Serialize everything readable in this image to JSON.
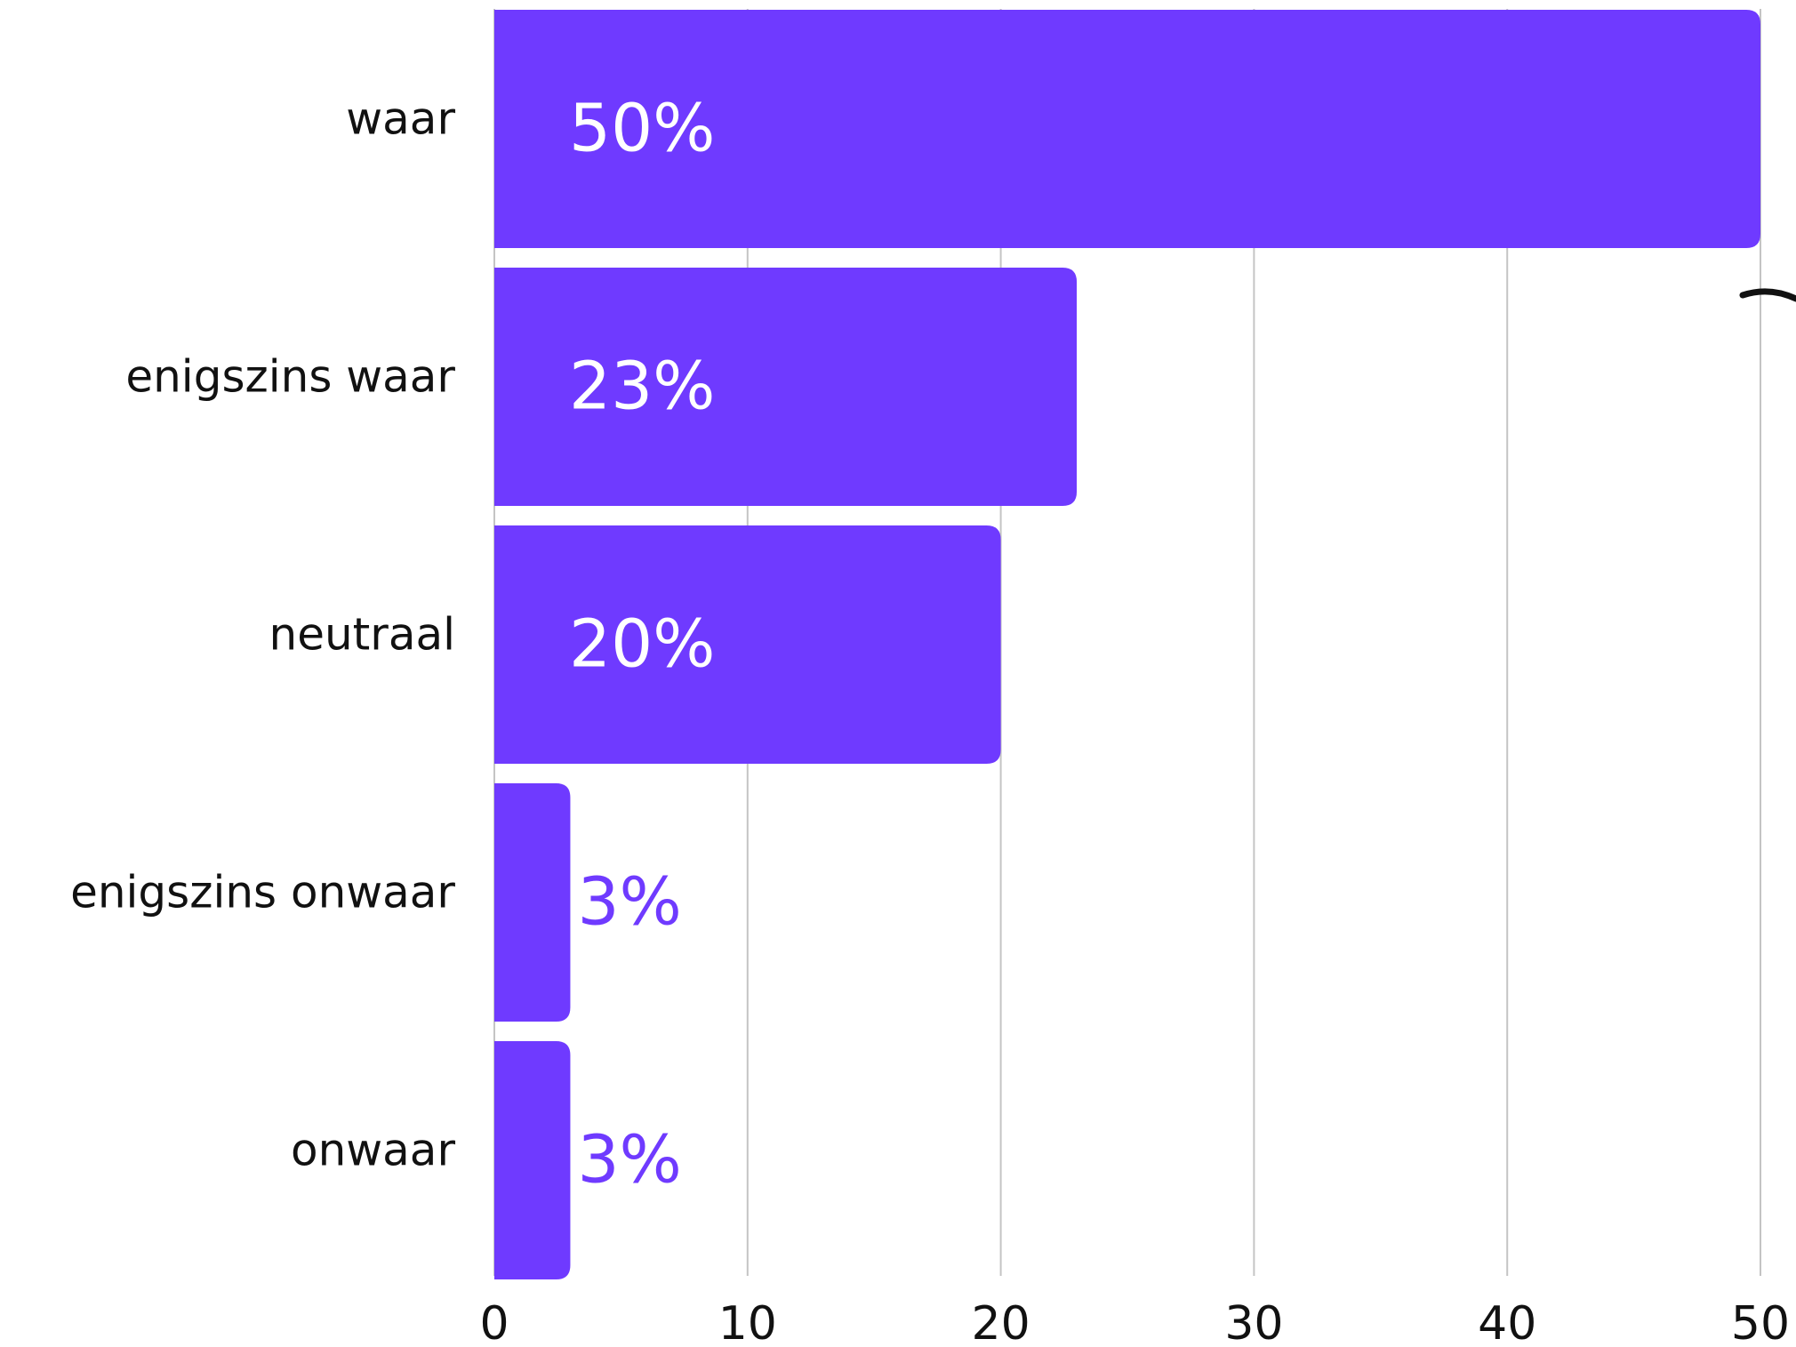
{
  "chart_data": {
    "type": "bar",
    "orientation": "horizontal",
    "categories": [
      "waar",
      "enigszins waar",
      "neutraal",
      "enigszins onwaar",
      "onwaar"
    ],
    "values": [
      50,
      23,
      20,
      3,
      3
    ],
    "value_labels": [
      "50%",
      "23%",
      "20%",
      "3%",
      "3%"
    ],
    "title": "",
    "xlabel": "",
    "ylabel": "",
    "xlim": [
      0,
      50
    ],
    "x_ticks": [
      0,
      10,
      20,
      30,
      40,
      50
    ],
    "x_tick_labels": [
      "0",
      "10",
      "20",
      "30",
      "40",
      "50"
    ],
    "grid": true,
    "legend": "none",
    "colors": {
      "bar": "#6f3aff",
      "label_inside": "#ffffff",
      "label_outside": "#6f3aff",
      "category_text": "#111111",
      "tick_text": "#111111",
      "grid": "#c4c4c4"
    }
  }
}
